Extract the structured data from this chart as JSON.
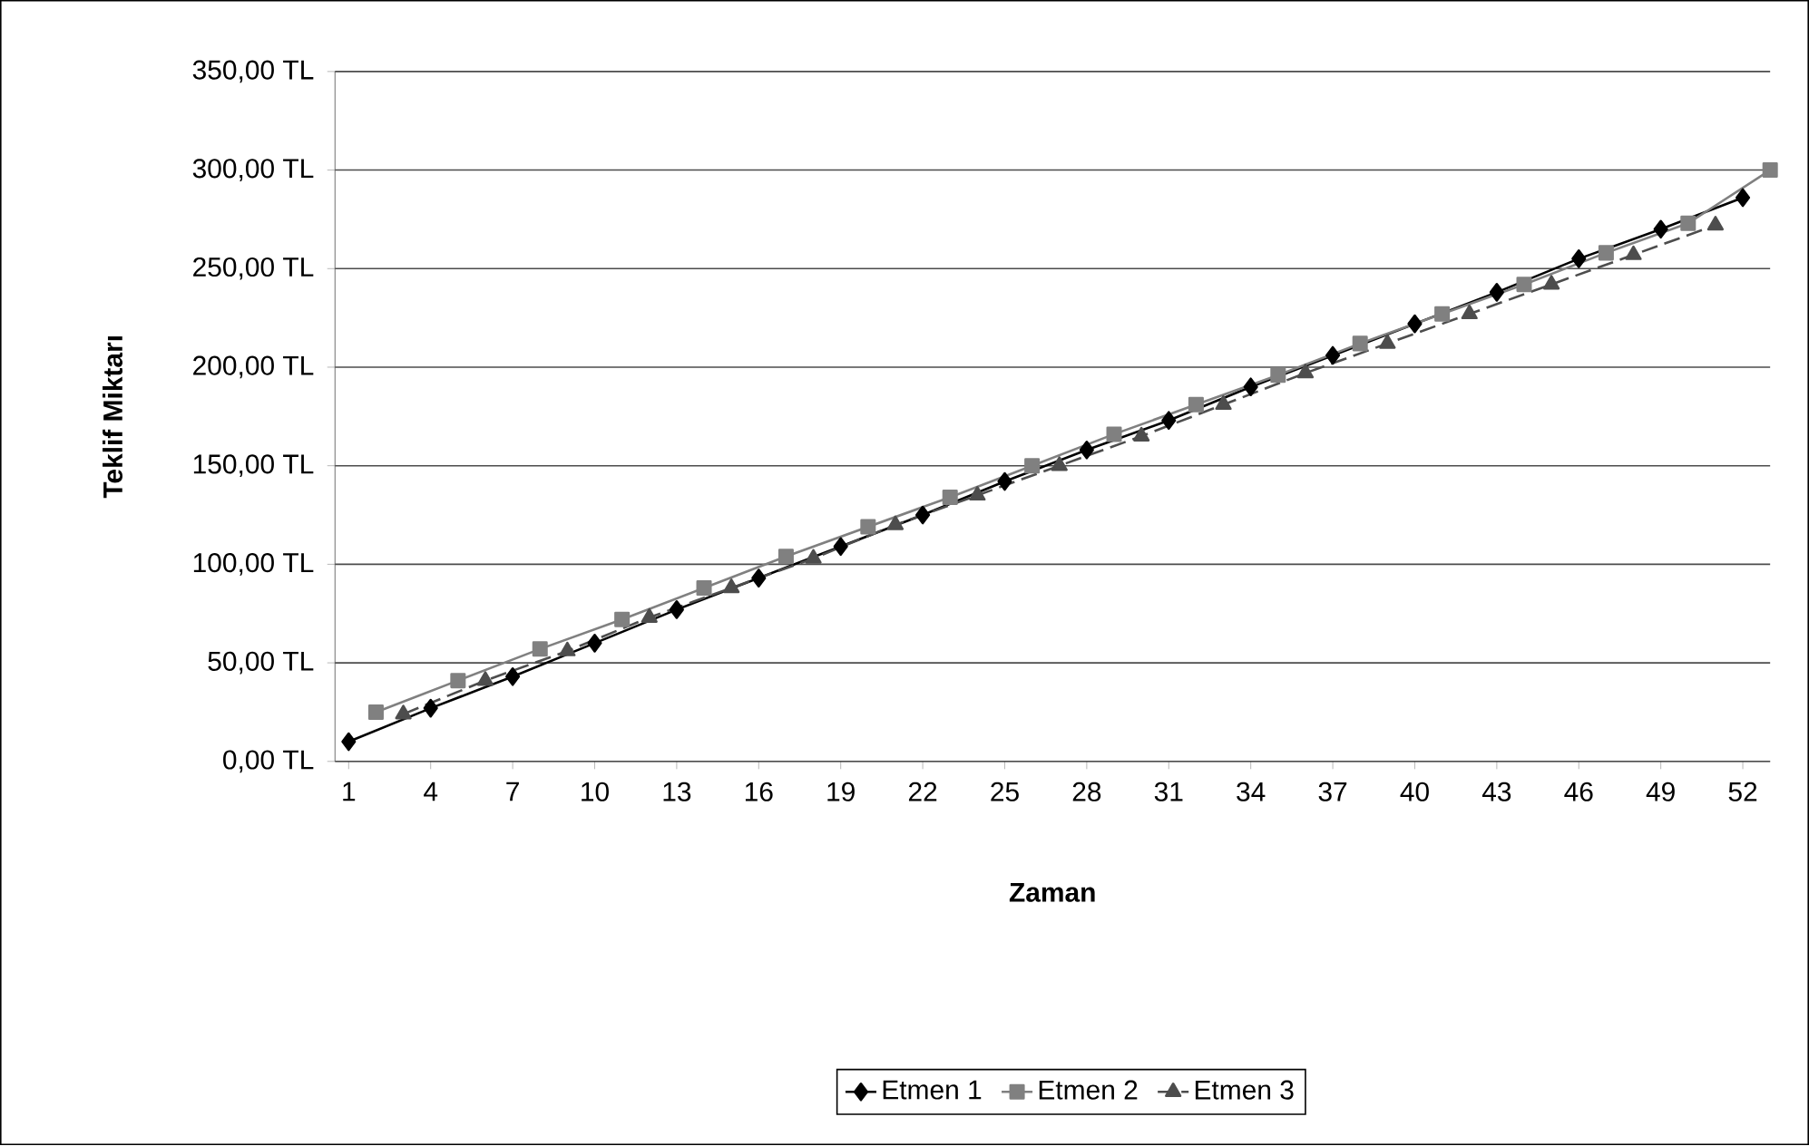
{
  "chart_data": {
    "type": "line",
    "xlabel": "Zaman",
    "ylabel": "Teklif Miktarı",
    "xlim": [
      0.5,
      53
    ],
    "xticks": [
      1,
      4,
      7,
      10,
      13,
      16,
      19,
      22,
      25,
      28,
      31,
      34,
      37,
      40,
      43,
      46,
      49,
      52
    ],
    "ylim": [
      0,
      350
    ],
    "yticks": [
      {
        "value": 0,
        "label": "0,00 TL"
      },
      {
        "value": 50,
        "label": "50,00 TL"
      },
      {
        "value": 100,
        "label": "100,00 TL"
      },
      {
        "value": 150,
        "label": "150,00 TL"
      },
      {
        "value": 200,
        "label": "200,00 TL"
      },
      {
        "value": 250,
        "label": "250,00 TL"
      },
      {
        "value": 300,
        "label": "300,00 TL"
      },
      {
        "value": 350,
        "label": "350,00 TL"
      }
    ],
    "grid": "y",
    "legend": "bottom",
    "series": [
      {
        "name": "Etmen 1",
        "color": "#000000",
        "marker": "diamond",
        "line_style": "solid",
        "x": [
          1,
          4,
          7,
          10,
          13,
          16,
          19,
          22,
          25,
          28,
          31,
          34,
          37,
          40,
          43,
          46,
          49,
          52
        ],
        "values": [
          10,
          27,
          43,
          60,
          77,
          93,
          109,
          125,
          142,
          158,
          173,
          190,
          206,
          222,
          238,
          255,
          270,
          286
        ]
      },
      {
        "name": "Etmen 2",
        "color": "#808080",
        "marker": "square",
        "line_style": "solid",
        "x": [
          2,
          5,
          8,
          11,
          14,
          17,
          20,
          23,
          26,
          29,
          32,
          35,
          38,
          41,
          44,
          47,
          50,
          53
        ],
        "values": [
          25,
          41,
          57,
          72,
          88,
          104,
          119,
          134,
          150,
          166,
          181,
          196,
          212,
          227,
          242,
          258,
          273,
          300
        ]
      },
      {
        "name": "Etmen 3",
        "color": "#4d4d4d",
        "marker": "triangle",
        "line_style": "dashed",
        "x": [
          3,
          6,
          9,
          12,
          15,
          18,
          21,
          24,
          27,
          30,
          33,
          36,
          39,
          42,
          45,
          48,
          51
        ],
        "values": [
          24,
          41,
          56,
          73,
          88,
          103,
          120,
          135,
          150,
          165,
          181,
          197,
          212,
          227,
          242,
          257,
          272
        ]
      }
    ]
  }
}
